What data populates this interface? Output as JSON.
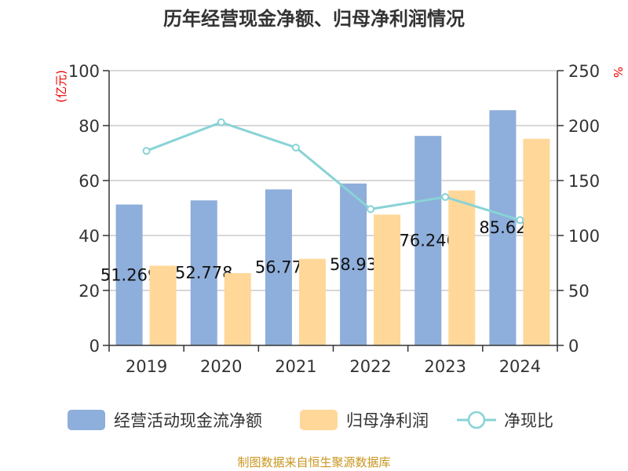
{
  "chart_data": {
    "type": "bar",
    "title": "历年经营现金净额、归母净利润情况",
    "ylabel": "(亿元)",
    "y2label": "%",
    "categories": [
      "2019",
      "2020",
      "2021",
      "2022",
      "2023",
      "2024"
    ],
    "ylim": [
      0,
      100
    ],
    "y2lim": [
      0,
      250
    ],
    "yticks": [
      "0",
      "20",
      "40",
      "60",
      "80",
      "100"
    ],
    "y2ticks": [
      "0",
      "50",
      "100",
      "150",
      "200",
      "250"
    ],
    "grid": true,
    "legend_position": "bottom",
    "series": [
      {
        "name": "经营活动现金流净额",
        "type": "bar",
        "color": "#8eaedb",
        "values": [
          51.269,
          52.778,
          56.77,
          58.93,
          76.246,
          85.62
        ],
        "labels": [
          "51.269",
          "52.778",
          "56.77",
          "58.93",
          "76.246",
          "85.62"
        ]
      },
      {
        "name": "归母净利润",
        "type": "bar",
        "color": "#ffd799",
        "values": [
          29.0,
          26.3,
          31.5,
          47.6,
          56.4,
          75.2
        ]
      },
      {
        "name": "净现比",
        "type": "line",
        "axis": "right",
        "color": "#88d3d6",
        "values": [
          177,
          203,
          180,
          124,
          135,
          114
        ]
      }
    ]
  },
  "source": "制图数据来自恒生聚源数据库"
}
